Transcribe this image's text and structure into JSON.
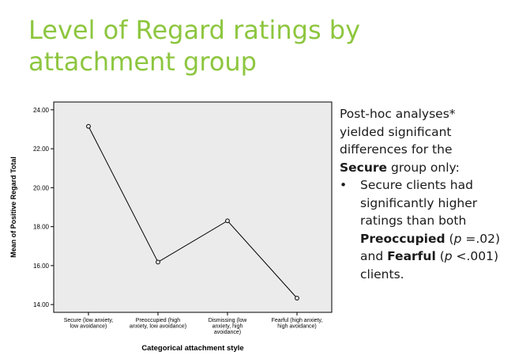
{
  "title": {
    "line1": "Level of Regard ratings by",
    "line2": "attachment group"
  },
  "notes": {
    "intro_line1": "Post-hoc analyses*",
    "intro_line2": "yielded significant",
    "intro_line3": "differences for the",
    "intro_bold": "Secure",
    "intro_rest": " group only:",
    "bullet_mark": "•",
    "b_line1": "Secure clients had",
    "b_line2": "significantly higher",
    "b_line3": "ratings than both",
    "b_preoccupied": "Preoccupied",
    "b_p1_open": " (",
    "b_p1_letter": "p",
    "b_p1_value": " =.02)",
    "b_and": "and ",
    "b_fearful": "Fearful",
    "b_p2_open": " (",
    "b_p2_letter": "p",
    "b_p2_value": " <.001)",
    "b_clients": "clients."
  },
  "chart_data": {
    "type": "line",
    "categories": [
      [
        "Secure (low anxiety,",
        "low avoidance)"
      ],
      [
        "Preoccupied (high",
        "anxiety, low avoidance)"
      ],
      [
        "Dismissing (low",
        "anxiety, high",
        "avoidance)"
      ],
      [
        "Fearful (high anxiety,",
        "high avoidance)"
      ]
    ],
    "values": [
      23.15,
      16.18,
      18.3,
      14.33
    ],
    "xlabel": "Categorical attachment style",
    "ylabel": "Mean of Positive Regard Total",
    "ylim": [
      13.6,
      24.4
    ],
    "yticks": [
      14,
      16,
      18,
      20,
      22,
      24
    ],
    "ytick_labels": [
      "14.00",
      "16.00",
      "18.00",
      "20.00",
      "22.00",
      "24.00"
    ],
    "background": "#ebebeb",
    "line_color": "#000000",
    "marker": "open-circle",
    "grid": false
  }
}
